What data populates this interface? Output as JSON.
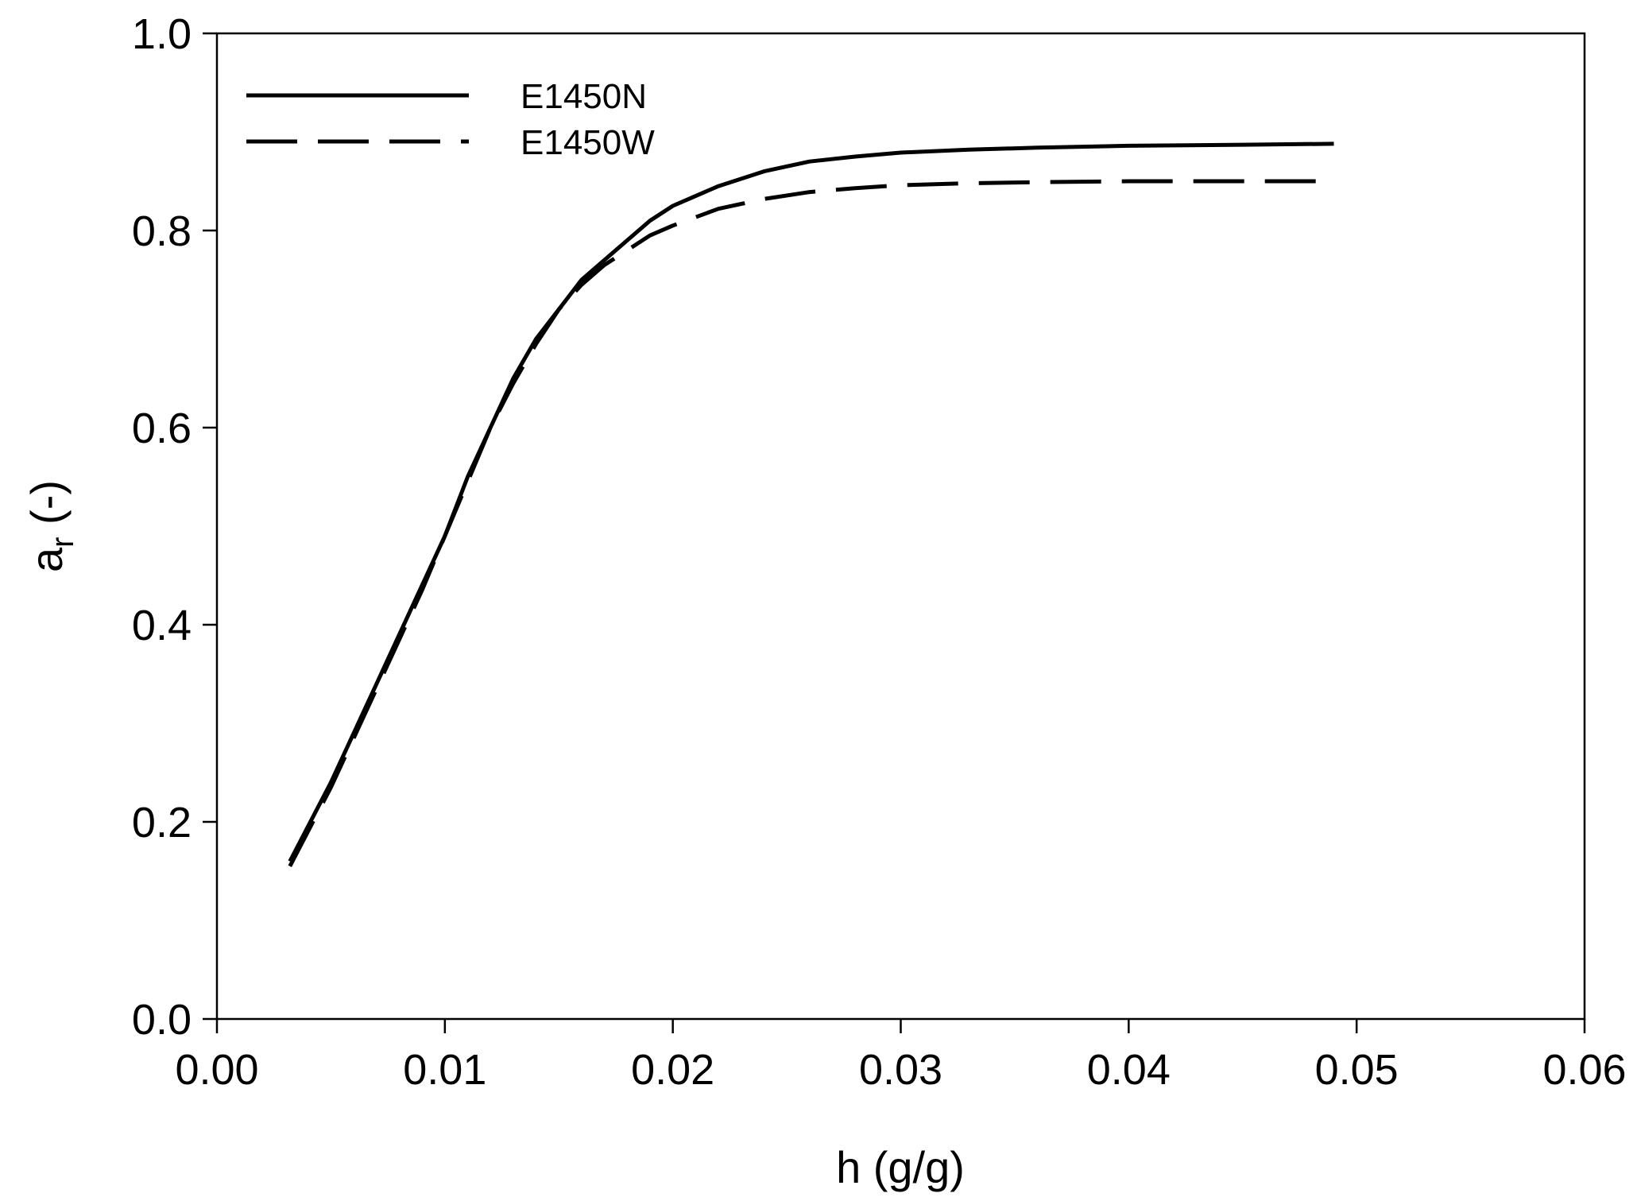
{
  "chart_data": {
    "type": "line",
    "title": "",
    "xlabel": "h (g/g)",
    "ylabel": "a",
    "ylabel_subscript": "r",
    "ylabel_suffix": " (-)",
    "xlim": [
      0.0,
      0.06
    ],
    "ylim": [
      0.0,
      1.0
    ],
    "xticks": [
      "0.00",
      "0.01",
      "0.02",
      "0.03",
      "0.04",
      "0.05",
      "0.06"
    ],
    "yticks": [
      "0.0",
      "0.2",
      "0.4",
      "0.6",
      "0.8",
      "1.0"
    ],
    "grid": false,
    "legend_position": "top-left",
    "series": [
      {
        "name": "E1450N",
        "style": "solid",
        "color": "#000000",
        "x": [
          0.0032,
          0.005,
          0.007,
          0.009,
          0.01,
          0.011,
          0.012,
          0.013,
          0.014,
          0.015,
          0.016,
          0.017,
          0.018,
          0.019,
          0.02,
          0.022,
          0.024,
          0.026,
          0.028,
          0.03,
          0.033,
          0.036,
          0.04,
          0.045,
          0.049
        ],
        "y": [
          0.16,
          0.24,
          0.34,
          0.44,
          0.49,
          0.55,
          0.6,
          0.65,
          0.69,
          0.72,
          0.75,
          0.77,
          0.79,
          0.81,
          0.825,
          0.845,
          0.86,
          0.87,
          0.875,
          0.879,
          0.882,
          0.884,
          0.886,
          0.887,
          0.888
        ]
      },
      {
        "name": "E1450W",
        "style": "dashed",
        "color": "#000000",
        "x": [
          0.0032,
          0.005,
          0.007,
          0.009,
          0.01,
          0.011,
          0.012,
          0.013,
          0.014,
          0.015,
          0.016,
          0.017,
          0.018,
          0.019,
          0.02,
          0.022,
          0.024,
          0.026,
          0.028,
          0.03,
          0.033,
          0.036,
          0.04,
          0.045,
          0.049
        ],
        "y": [
          0.155,
          0.235,
          0.335,
          0.435,
          0.49,
          0.545,
          0.6,
          0.645,
          0.685,
          0.72,
          0.745,
          0.765,
          0.78,
          0.795,
          0.805,
          0.822,
          0.832,
          0.839,
          0.843,
          0.846,
          0.848,
          0.849,
          0.85,
          0.85,
          0.85
        ]
      }
    ]
  }
}
